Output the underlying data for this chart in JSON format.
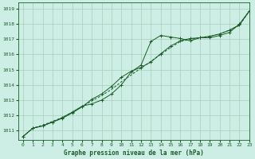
{
  "title": "Graphe pression niveau de la mer (hPa)",
  "background_color": "#cceee4",
  "plot_bg_color": "#cceee4",
  "grid_color": "#aaccbb",
  "line_color": "#1a5c28",
  "xlim": [
    -0.5,
    23
  ],
  "ylim": [
    1010.4,
    1019.4
  ],
  "yticks": [
    1011,
    1012,
    1013,
    1014,
    1015,
    1016,
    1017,
    1018,
    1019
  ],
  "xticks": [
    0,
    1,
    2,
    3,
    4,
    5,
    6,
    7,
    8,
    9,
    10,
    11,
    12,
    13,
    14,
    15,
    16,
    17,
    18,
    19,
    20,
    21,
    22,
    23
  ],
  "series1_x": [
    0,
    1,
    2,
    3,
    4,
    5,
    6,
    7,
    8,
    9,
    10,
    11,
    12,
    13,
    14,
    15,
    16,
    17,
    18,
    19,
    20,
    21,
    22,
    23
  ],
  "series1_y": [
    1010.6,
    1011.15,
    1011.3,
    1011.55,
    1011.8,
    1012.15,
    1012.55,
    1013.05,
    1013.4,
    1013.9,
    1014.5,
    1014.9,
    1015.15,
    1015.5,
    1016.05,
    1016.55,
    1016.9,
    1017.05,
    1017.1,
    1017.2,
    1017.35,
    1017.6,
    1017.95,
    1018.85
  ],
  "series2_x": [
    0,
    1,
    2,
    3,
    4,
    5,
    6,
    7,
    8,
    9,
    10,
    11,
    12,
    13,
    14,
    15,
    16,
    17,
    18,
    19,
    20,
    21,
    22,
    23
  ],
  "series2_y": [
    1010.6,
    1011.15,
    1011.3,
    1011.55,
    1011.85,
    1012.2,
    1012.6,
    1012.75,
    1013.0,
    1013.4,
    1014.0,
    1014.85,
    1015.3,
    1016.85,
    1017.25,
    1017.15,
    1017.05,
    1016.9,
    1017.1,
    1017.1,
    1017.25,
    1017.45,
    1018.0,
    1018.85
  ],
  "series3_x": [
    0,
    1,
    2,
    3,
    4,
    5,
    6,
    7,
    8,
    9,
    10,
    11,
    12,
    13,
    14,
    15,
    16,
    17,
    18,
    19,
    20,
    21,
    22,
    23
  ],
  "series3_y": [
    1010.6,
    1011.15,
    1011.35,
    1011.6,
    1011.85,
    1012.2,
    1012.55,
    1012.95,
    1013.3,
    1013.7,
    1014.2,
    1014.65,
    1015.1,
    1015.55,
    1016.0,
    1016.45,
    1016.85,
    1017.0,
    1017.1,
    1017.2,
    1017.35,
    1017.6,
    1017.9,
    1018.85
  ]
}
